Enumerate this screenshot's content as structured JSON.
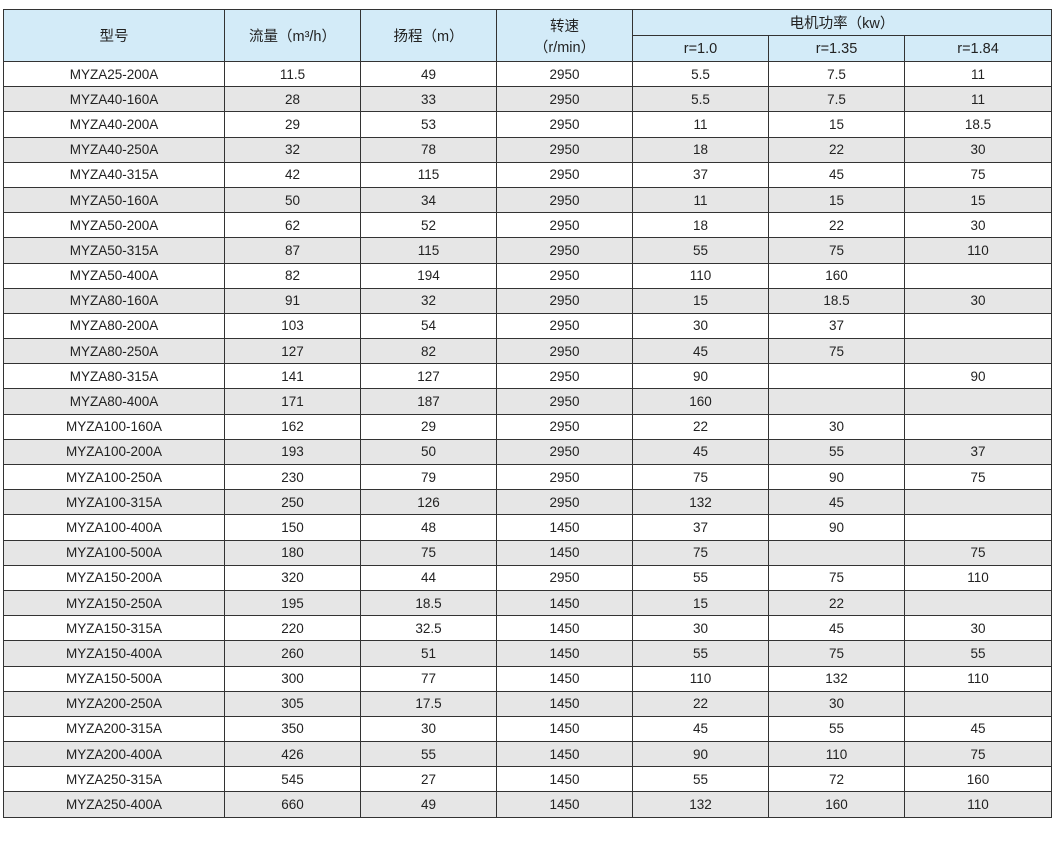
{
  "header": {
    "model": "型号",
    "flow": "流量（m³/h）",
    "head": "扬程（m）",
    "speed_line1": "转速",
    "speed_line2": "（r/min）",
    "motor_power": "电机功率（kw）",
    "r_values": [
      "r=1.0",
      "r=1.35",
      "r=1.84"
    ]
  },
  "colors": {
    "header_bg": "#d3ebf8",
    "alt_row_bg": "#e6e6e6"
  },
  "rows": [
    [
      "MYZA25-200A",
      "11.5",
      "49",
      "2950",
      "5.5",
      "7.5",
      "11"
    ],
    [
      "MYZA40-160A",
      "28",
      "33",
      "2950",
      "5.5",
      "7.5",
      "11"
    ],
    [
      "MYZA40-200A",
      "29",
      "53",
      "2950",
      "11",
      "15",
      "18.5"
    ],
    [
      "MYZA40-250A",
      "32",
      "78",
      "2950",
      "18",
      "22",
      "30"
    ],
    [
      "MYZA40-315A",
      "42",
      "115",
      "2950",
      "37",
      "45",
      "75"
    ],
    [
      "MYZA50-160A",
      "50",
      "34",
      "2950",
      "11",
      "15",
      "15"
    ],
    [
      "MYZA50-200A",
      "62",
      "52",
      "2950",
      "18",
      "22",
      "30"
    ],
    [
      "MYZA50-315A",
      "87",
      "115",
      "2950",
      "55",
      "75",
      "110"
    ],
    [
      "MYZA50-400A",
      "82",
      "194",
      "2950",
      "110",
      "160",
      ""
    ],
    [
      "MYZA80-160A",
      "91",
      "32",
      "2950",
      "15",
      "18.5",
      "30"
    ],
    [
      "MYZA80-200A",
      "103",
      "54",
      "2950",
      "30",
      "37",
      ""
    ],
    [
      "MYZA80-250A",
      "127",
      "82",
      "2950",
      "45",
      "75",
      ""
    ],
    [
      "MYZA80-315A",
      "141",
      "127",
      "2950",
      "90",
      "",
      "90"
    ],
    [
      "MYZA80-400A",
      "171",
      "187",
      "2950",
      "160",
      "",
      ""
    ],
    [
      "MYZA100-160A",
      "162",
      "29",
      "2950",
      "22",
      "30",
      ""
    ],
    [
      "MYZA100-200A",
      "193",
      "50",
      "2950",
      "45",
      "55",
      "37"
    ],
    [
      "MYZA100-250A",
      "230",
      "79",
      "2950",
      "75",
      "90",
      "75"
    ],
    [
      "MYZA100-315A",
      "250",
      "126",
      "2950",
      "132",
      "45",
      ""
    ],
    [
      "MYZA100-400A",
      "150",
      "48",
      "1450",
      "37",
      "90",
      ""
    ],
    [
      "MYZA100-500A",
      "180",
      "75",
      "1450",
      "75",
      "",
      "75"
    ],
    [
      "MYZA150-200A",
      "320",
      "44",
      "2950",
      "55",
      "75",
      "110"
    ],
    [
      "MYZA150-250A",
      "195",
      "18.5",
      "1450",
      "15",
      "22",
      ""
    ],
    [
      "MYZA150-315A",
      "220",
      "32.5",
      "1450",
      "30",
      "45",
      "30"
    ],
    [
      "MYZA150-400A",
      "260",
      "51",
      "1450",
      "55",
      "75",
      "55"
    ],
    [
      "MYZA150-500A",
      "300",
      "77",
      "1450",
      "110",
      "132",
      "110"
    ],
    [
      "MYZA200-250A",
      "305",
      "17.5",
      "1450",
      "22",
      "30",
      ""
    ],
    [
      "MYZA200-315A",
      "350",
      "30",
      "1450",
      "45",
      "55",
      "45"
    ],
    [
      "MYZA200-400A",
      "426",
      "55",
      "1450",
      "90",
      "110",
      "75"
    ],
    [
      "MYZA250-315A",
      "545",
      "27",
      "1450",
      "55",
      "72",
      "160"
    ],
    [
      "MYZA250-400A",
      "660",
      "49",
      "1450",
      "132",
      "160",
      "110"
    ]
  ]
}
